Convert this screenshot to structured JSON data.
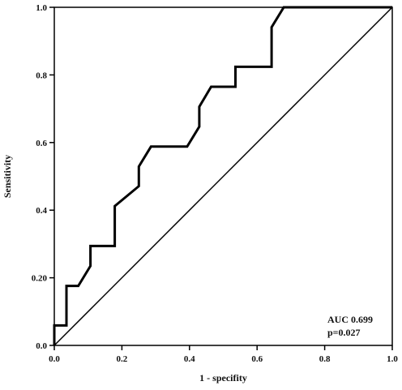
{
  "chart_data": {
    "type": "line",
    "xlabel": "1 - specifity",
    "ylabel": "Sensitivity",
    "xlim": [
      0,
      1
    ],
    "ylim": [
      0,
      1
    ],
    "x_ticks": [
      "0.0",
      "0.2",
      "0.4",
      "0.6",
      "0.8",
      "1.0"
    ],
    "y_ticks": [
      "0.0",
      "0.20",
      "0.4",
      "0.6",
      "0.8",
      "1.0"
    ],
    "grid": false,
    "annotations": [
      "AUC 0.699",
      "p=0.027"
    ],
    "colors": {
      "roc": "#000000",
      "reference": "#000000"
    },
    "series": [
      {
        "x": [
          0,
          0,
          0.036,
          0.036,
          0.071,
          0.107,
          0.107,
          0.179,
          0.179,
          0.25,
          0.25,
          0.286,
          0.393,
          0.429,
          0.429,
          0.464,
          0.536,
          0.536,
          0.643,
          0.643,
          0.679,
          1.0
        ],
        "y": [
          0,
          0.059,
          0.059,
          0.176,
          0.176,
          0.235,
          0.294,
          0.294,
          0.412,
          0.471,
          0.529,
          0.588,
          0.588,
          0.647,
          0.706,
          0.765,
          0.765,
          0.824,
          0.824,
          0.941,
          1.0,
          1.0
        ]
      },
      {
        "x": [
          0,
          1
        ],
        "y": [
          0,
          1
        ]
      }
    ]
  }
}
